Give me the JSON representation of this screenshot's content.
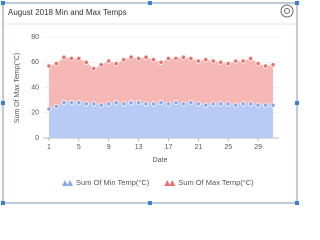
{
  "chart_data": {
    "type": "area",
    "title": "August 2018 Min and Max Temps",
    "x_label": "Date",
    "y_label": "Sum Of Max Temp(°C)",
    "x": [
      1,
      2,
      3,
      4,
      5,
      6,
      7,
      8,
      9,
      10,
      11,
      12,
      13,
      14,
      15,
      16,
      17,
      18,
      19,
      20,
      21,
      22,
      23,
      24,
      25,
      26,
      27,
      28,
      29,
      30,
      31
    ],
    "series": [
      {
        "name": "Sum Of Max Temp(°C)",
        "color": "#e8716c",
        "fill": "#f5b8b4",
        "values": [
          57,
          59,
          64,
          63,
          63,
          60,
          55,
          58,
          61,
          59,
          62,
          64,
          63,
          64,
          62,
          60,
          63,
          63,
          64,
          63,
          61,
          62,
          61,
          60,
          59,
          61,
          61,
          63,
          59,
          57,
          58
        ]
      },
      {
        "name": "Sum Of Min Temp(°C)",
        "color": "#86a8ee",
        "fill": "#b7cbf6",
        "values": [
          23,
          25,
          28,
          28,
          28,
          27,
          27,
          26,
          27,
          28,
          27,
          28,
          28,
          27,
          27,
          28,
          27,
          28,
          27,
          28,
          27,
          26,
          27,
          27,
          27,
          26,
          27,
          27,
          26,
          26,
          26
        ]
      }
    ],
    "xlim": [
      0.2,
      31.8
    ],
    "xticks": [
      1,
      5,
      9,
      13,
      17,
      21,
      25,
      29
    ],
    "ylim": [
      0,
      80
    ],
    "yticks": [
      0,
      20,
      40,
      60,
      80
    ],
    "grid": true,
    "legend": "bottom"
  }
}
